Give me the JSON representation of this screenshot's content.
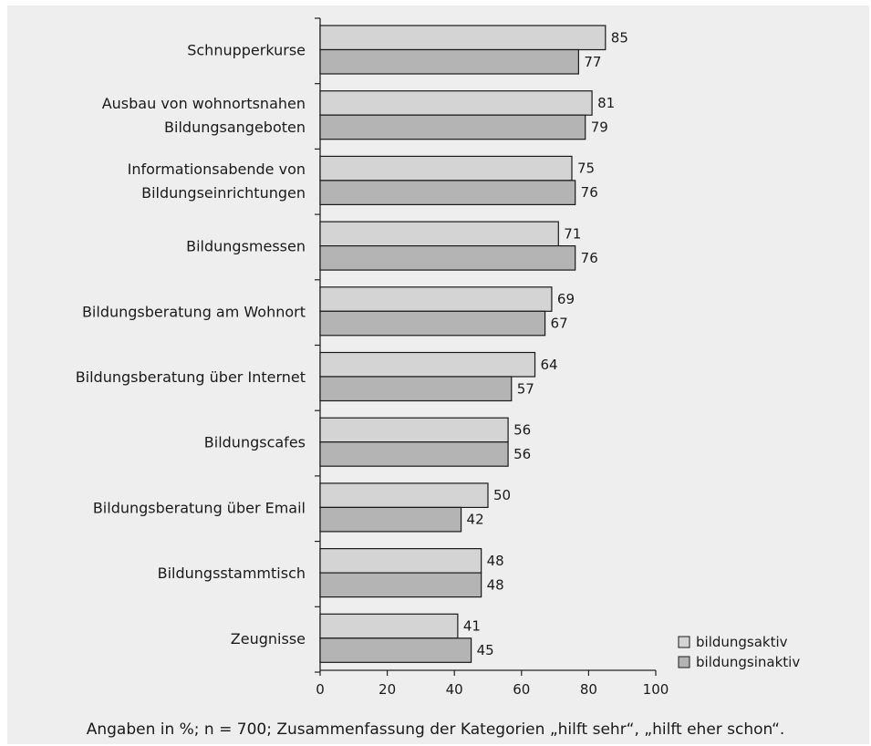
{
  "chart_data": {
    "type": "bar",
    "orientation": "horizontal",
    "categories": [
      [
        "Schnupperkurse"
      ],
      [
        "Ausbau von wohnortsnahen",
        "Bildungsangeboten"
      ],
      [
        "Informationsabende von",
        "Bildungseinrichtungen"
      ],
      [
        "Bildungsmessen"
      ],
      [
        "Bildungsberatung am Wohnort"
      ],
      [
        "Bildungsberatung über Internet"
      ],
      [
        "Bildungscafes"
      ],
      [
        "Bildungsberatung über Email"
      ],
      [
        "Bildungsstammtisch"
      ],
      [
        "Zeugnisse"
      ]
    ],
    "series": [
      {
        "name": "bildungsaktiv",
        "color": "#d4d4d4",
        "values": [
          85,
          81,
          75,
          71,
          69,
          64,
          56,
          50,
          48,
          41
        ]
      },
      {
        "name": "bildungsinaktiv",
        "color": "#b4b4b4",
        "values": [
          77,
          79,
          76,
          76,
          67,
          57,
          56,
          42,
          48,
          45
        ]
      }
    ],
    "xlim": [
      0,
      100
    ],
    "xticks": [
      0,
      20,
      40,
      60,
      80,
      100
    ],
    "legend_position": "bottom-right",
    "grid": false
  },
  "footnote": "Angaben in %; n = 700;  Zusammenfassung der Kategorien „hilft sehr“, „hilft eher schon“."
}
